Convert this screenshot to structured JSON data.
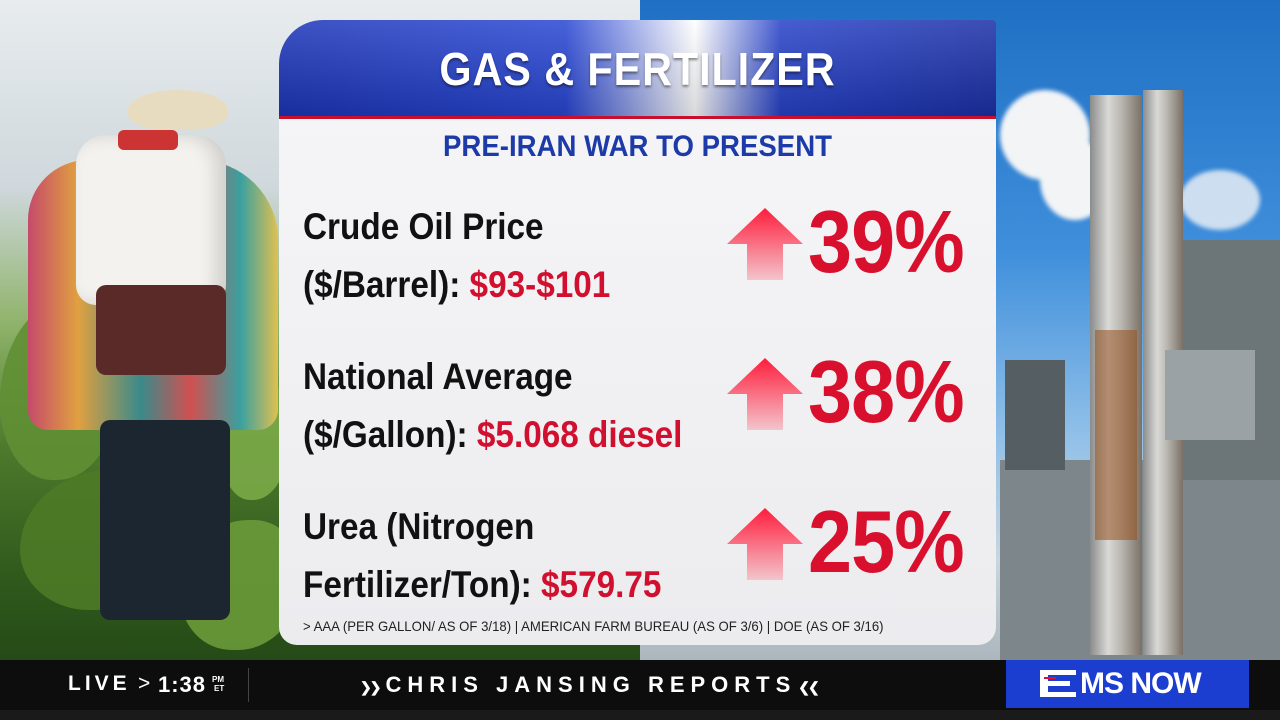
{
  "graphic": {
    "title": "GAS & FERTILIZER",
    "subtitle": "PRE-IRAN WAR TO PRESENT",
    "rows": [
      {
        "label_line1": "Crude Oil Price",
        "label_line2_prefix": "($/Barrel): ",
        "value": "$93-$101",
        "change_icon": "up-arrow-icon",
        "change_pct": "39%"
      },
      {
        "label_line1": "National Average",
        "label_line2_prefix": "($/Gallon): ",
        "value": "$5.068 diesel",
        "change_icon": "up-arrow-icon",
        "change_pct": "38%"
      },
      {
        "label_line1": "Urea (Nitrogen",
        "label_line2_prefix": "Fertilizer/Ton): ",
        "value": "$579.75",
        "change_icon": "up-arrow-icon",
        "change_pct": "25%"
      }
    ],
    "source": "> AAA (PER GALLON/ AS OF 3/18) | AMERICAN FARM BUREAU (AS OF 3/6) | DOE (AS OF 3/16)",
    "colors": {
      "header_blue": "#1b34b8",
      "accent_red": "#d8102e",
      "subtitle_blue": "#1c3aa8"
    }
  },
  "ticker": {
    "live": "LIVE",
    "separator": ">",
    "time": "1:38",
    "ampm": "PM",
    "timezone": "ET",
    "show_left_mark": "❯❯",
    "show_name": "CHRIS JANSING REPORTS",
    "show_right_mark": "❮❮",
    "network": "MS NOW",
    "network_color": "#1c3ed0"
  }
}
